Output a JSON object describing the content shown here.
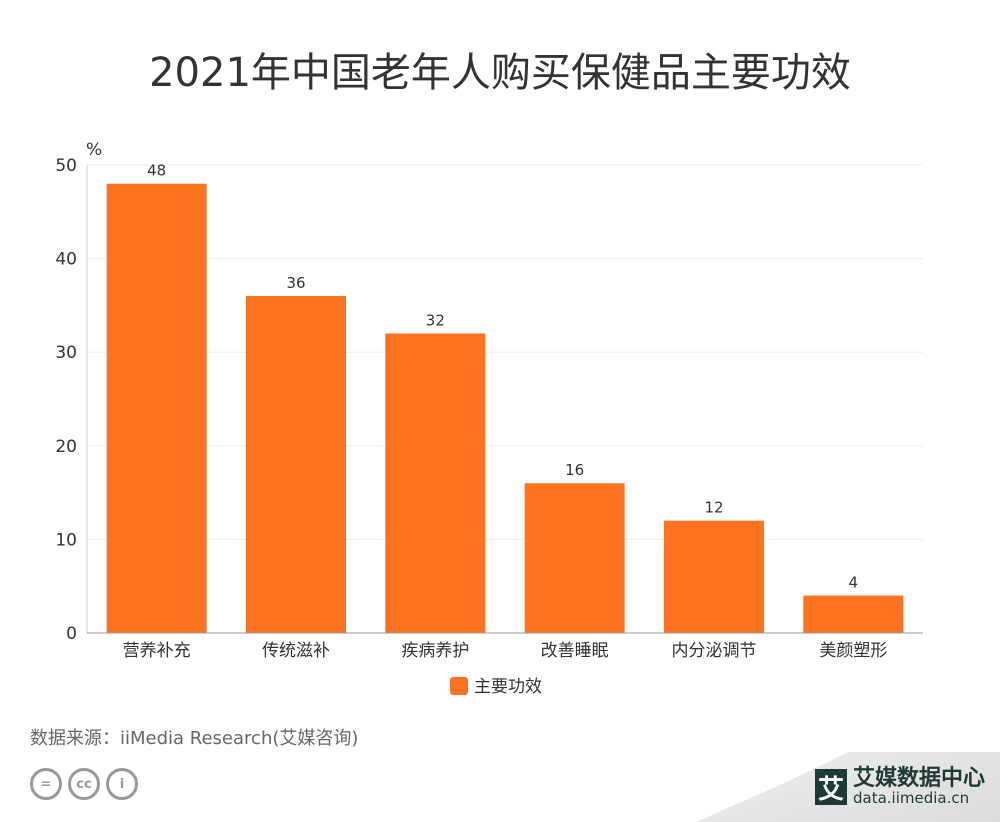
{
  "chart_data": {
    "type": "bar",
    "title": "2021年中国老年人购买保健品主要功效",
    "ylabel": "%",
    "xlabel": "",
    "categories": [
      "营养补充",
      "传统滋补",
      "疾病养护",
      "改善睡眠",
      "内分泌调节",
      "美颜塑形"
    ],
    "series": [
      {
        "name": "主要功效",
        "values": [
          48,
          36,
          32,
          16,
          12,
          4
        ],
        "color": "#fd7320"
      }
    ],
    "ylim": [
      0,
      50
    ],
    "yticks": [
      "0",
      "10",
      "20",
      "30",
      "40",
      "50"
    ],
    "grid": true,
    "legend": "bottom"
  },
  "footer": {
    "source": "数据来源：iiMedia Research(艾媒咨询)",
    "brand_name": "艾媒数据中心",
    "brand_url": "data.iimedia.cn",
    "brand_logo": "艾",
    "license_icons": [
      "nd-icon",
      "cc-icon",
      "by-icon"
    ]
  }
}
